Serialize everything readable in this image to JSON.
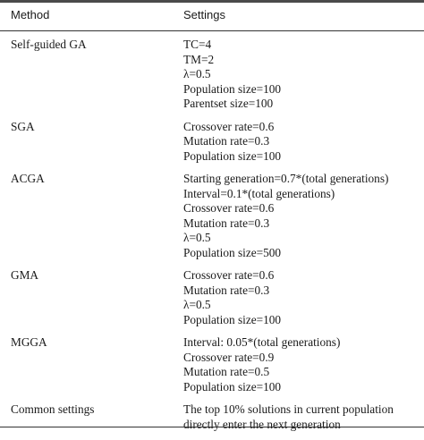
{
  "header": {
    "method": "Method",
    "settings": "Settings"
  },
  "rows": [
    {
      "method": "Self-guided GA",
      "settings": [
        "TC=4",
        "TM=2",
        "λ=0.5",
        "Population size=100",
        "Parentset size=100"
      ]
    },
    {
      "method": "SGA",
      "settings": [
        "Crossover rate=0.6",
        "Mutation rate=0.3",
        "Population size=100"
      ]
    },
    {
      "method": "ACGA",
      "settings": [
        "Starting generation=0.7*(total generations)",
        "Interval=0.1*(total generations)",
        "Crossover rate=0.6",
        "Mutation rate=0.3",
        "λ=0.5",
        "Population size=500"
      ]
    },
    {
      "method": "GMA",
      "settings": [
        "Crossover rate=0.6",
        "Mutation rate=0.3",
        "λ=0.5",
        "Population size=100"
      ]
    },
    {
      "method": "MGGA",
      "settings": [
        "Interval: 0.05*(total generations)",
        "Crossover rate=0.9",
        "Mutation rate=0.5",
        "Population size=100"
      ]
    },
    {
      "method": "Common settings",
      "settings": [
        "The top 10% solutions in current population",
        "directly enter the next generation"
      ]
    }
  ]
}
